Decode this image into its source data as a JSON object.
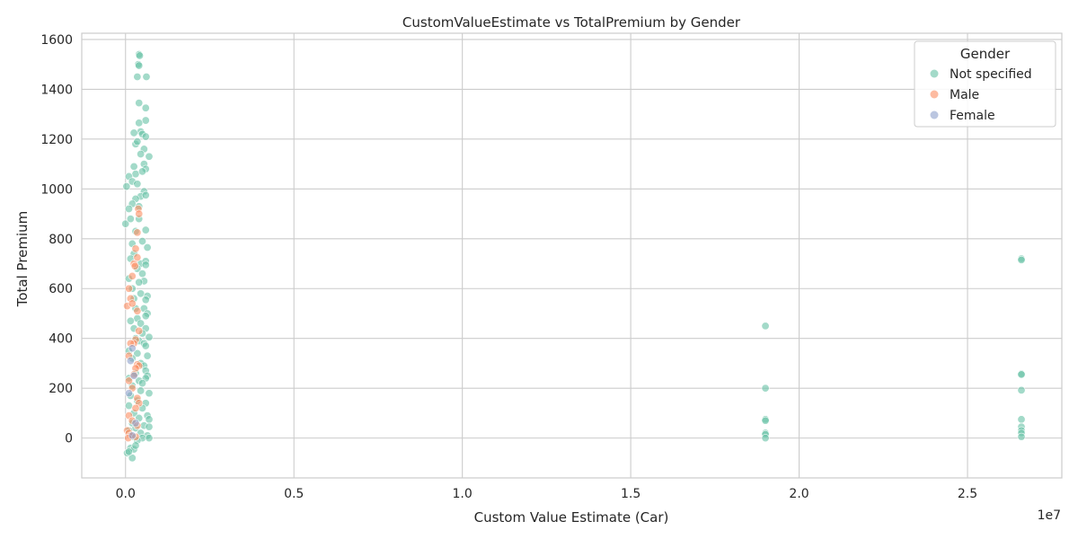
{
  "chart_data": {
    "type": "scatter",
    "title": "CustomValueEstimate vs TotalPremium by Gender",
    "xlabel": "Custom Value Estimate (Car)",
    "ylabel": "Total Premium",
    "x_offset_label": "1e7",
    "x_unit": 10000000,
    "xlim": [
      -0.13,
      2.78
    ],
    "ylim": [
      -160,
      1625
    ],
    "x_ticks": [
      0.0,
      0.5,
      1.0,
      1.5,
      2.0,
      2.5
    ],
    "x_tick_labels": [
      "0.0",
      "0.5",
      "1.0",
      "1.5",
      "2.0",
      "2.5"
    ],
    "y_ticks": [
      0,
      200,
      400,
      600,
      800,
      1000,
      1200,
      1400,
      1600
    ],
    "y_tick_labels": [
      "0",
      "200",
      "400",
      "600",
      "800",
      "1000",
      "1200",
      "1400",
      "1600"
    ],
    "grid": true,
    "legend": {
      "title": "Gender",
      "placement": "top-right"
    },
    "series": [
      {
        "name": "Not specified",
        "color": "#66c2a5",
        "points": [
          [
            0.003,
            1010
          ],
          [
            0.04,
            1540
          ],
          [
            0.042,
            1535
          ],
          [
            0.038,
            1500
          ],
          [
            0.04,
            1495
          ],
          [
            0.035,
            1450
          ],
          [
            0.062,
            1450
          ],
          [
            0.04,
            1345
          ],
          [
            0.06,
            1325
          ],
          [
            0.06,
            1275
          ],
          [
            0.04,
            1265
          ],
          [
            0.045,
            1230
          ],
          [
            0.05,
            1220
          ],
          [
            0.025,
            1225
          ],
          [
            0.06,
            1210
          ],
          [
            0.055,
            1160
          ],
          [
            0.07,
            1130
          ],
          [
            0.03,
            1180
          ],
          [
            0.035,
            1190
          ],
          [
            0.045,
            1140
          ],
          [
            0.055,
            1100
          ],
          [
            0.06,
            1080
          ],
          [
            0.025,
            1090
          ],
          [
            0.03,
            1060
          ],
          [
            0.05,
            1070
          ],
          [
            0.01,
            1050
          ],
          [
            0.02,
            1030
          ],
          [
            0.035,
            1020
          ],
          [
            0.055,
            990
          ],
          [
            0.045,
            970
          ],
          [
            0.06,
            975
          ],
          [
            0.03,
            960
          ],
          [
            0.02,
            940
          ],
          [
            0.01,
            920
          ],
          [
            0.04,
            930
          ],
          [
            0.0,
            860
          ],
          [
            0.015,
            880
          ],
          [
            0.04,
            880
          ],
          [
            0.06,
            835
          ],
          [
            0.03,
            830
          ],
          [
            0.05,
            790
          ],
          [
            0.065,
            765
          ],
          [
            0.02,
            780
          ],
          [
            0.025,
            740
          ],
          [
            0.045,
            700
          ],
          [
            0.06,
            710
          ],
          [
            0.06,
            695
          ],
          [
            0.015,
            720
          ],
          [
            0.035,
            680
          ],
          [
            0.05,
            660
          ],
          [
            0.01,
            640
          ],
          [
            0.055,
            630
          ],
          [
            0.04,
            625
          ],
          [
            0.02,
            600
          ],
          [
            0.045,
            580
          ],
          [
            0.065,
            570
          ],
          [
            0.06,
            555
          ],
          [
            0.025,
            560
          ],
          [
            0.03,
            520
          ],
          [
            0.055,
            520
          ],
          [
            0.065,
            500
          ],
          [
            0.06,
            490
          ],
          [
            0.035,
            480
          ],
          [
            0.015,
            470
          ],
          [
            0.045,
            460
          ],
          [
            0.06,
            440
          ],
          [
            0.025,
            440
          ],
          [
            0.05,
            420
          ],
          [
            0.07,
            405
          ],
          [
            0.03,
            400
          ],
          [
            0.04,
            390
          ],
          [
            0.055,
            380
          ],
          [
            0.06,
            370
          ],
          [
            0.01,
            350
          ],
          [
            0.035,
            340
          ],
          [
            0.065,
            330
          ],
          [
            0.02,
            320
          ],
          [
            0.045,
            300
          ],
          [
            0.055,
            290
          ],
          [
            0.06,
            270
          ],
          [
            0.065,
            250
          ],
          [
            0.03,
            260
          ],
          [
            0.01,
            240
          ],
          [
            0.06,
            240
          ],
          [
            0.04,
            230
          ],
          [
            0.05,
            220
          ],
          [
            0.02,
            210
          ],
          [
            0.07,
            180
          ],
          [
            0.045,
            190
          ],
          [
            0.015,
            170
          ],
          [
            0.035,
            150
          ],
          [
            0.06,
            140
          ],
          [
            0.01,
            130
          ],
          [
            0.05,
            120
          ],
          [
            0.025,
            100
          ],
          [
            0.065,
            90
          ],
          [
            0.04,
            80
          ],
          [
            0.07,
            75
          ],
          [
            0.02,
            60
          ],
          [
            0.055,
            50
          ],
          [
            0.07,
            45
          ],
          [
            0.03,
            40
          ],
          [
            0.01,
            30
          ],
          [
            0.045,
            20
          ],
          [
            0.065,
            10
          ],
          [
            0.05,
            0
          ],
          [
            0.02,
            5
          ],
          [
            0.07,
            0
          ],
          [
            0.035,
            -10
          ],
          [
            0.015,
            -40
          ],
          [
            0.025,
            -45
          ],
          [
            0.005,
            -60
          ],
          [
            0.02,
            -80
          ],
          [
            0.01,
            -55
          ],
          [
            0.03,
            -30
          ],
          [
            1.9,
            450
          ],
          [
            1.9,
            200
          ],
          [
            1.9,
            75
          ],
          [
            1.9,
            70
          ],
          [
            1.9,
            20
          ],
          [
            1.9,
            15
          ],
          [
            1.9,
            0
          ],
          [
            2.66,
            720
          ],
          [
            2.66,
            715
          ],
          [
            2.66,
            258
          ],
          [
            2.66,
            255
          ],
          [
            2.66,
            192
          ],
          [
            2.66,
            75
          ],
          [
            2.66,
            45
          ],
          [
            2.66,
            30
          ],
          [
            2.66,
            20
          ],
          [
            2.66,
            5
          ]
        ]
      },
      {
        "name": "Male",
        "color": "#fc8d62",
        "points": [
          [
            0.038,
            920
          ],
          [
            0.04,
            900
          ],
          [
            0.035,
            825
          ],
          [
            0.03,
            760
          ],
          [
            0.025,
            700
          ],
          [
            0.035,
            725
          ],
          [
            0.028,
            690
          ],
          [
            0.02,
            650
          ],
          [
            0.01,
            600
          ],
          [
            0.015,
            560
          ],
          [
            0.005,
            530
          ],
          [
            0.02,
            540
          ],
          [
            0.035,
            510
          ],
          [
            0.04,
            430
          ],
          [
            0.03,
            395
          ],
          [
            0.025,
            380
          ],
          [
            0.015,
            380
          ],
          [
            0.01,
            330
          ],
          [
            0.035,
            295
          ],
          [
            0.04,
            290
          ],
          [
            0.03,
            280
          ],
          [
            0.025,
            255
          ],
          [
            0.01,
            230
          ],
          [
            0.02,
            200
          ],
          [
            0.035,
            160
          ],
          [
            0.04,
            140
          ],
          [
            0.03,
            120
          ],
          [
            0.01,
            90
          ],
          [
            0.02,
            70
          ],
          [
            0.035,
            50
          ],
          [
            0.005,
            30
          ],
          [
            0.01,
            20
          ],
          [
            0.015,
            10
          ],
          [
            0.03,
            5
          ],
          [
            0.008,
            0
          ]
        ]
      },
      {
        "name": "Female",
        "color": "#8da0cb",
        "points": [
          [
            0.02,
            360
          ],
          [
            0.015,
            310
          ],
          [
            0.025,
            250
          ],
          [
            0.01,
            180
          ],
          [
            0.03,
            60
          ],
          [
            0.02,
            10
          ]
        ]
      }
    ]
  }
}
